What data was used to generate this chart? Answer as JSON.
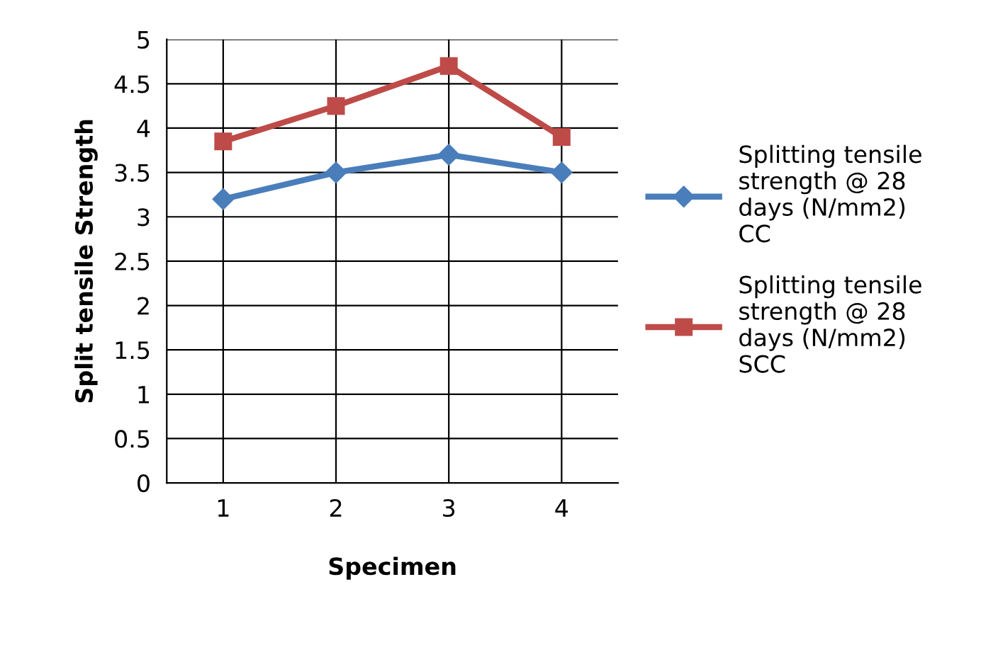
{
  "chart_data": {
    "type": "line",
    "xlabel": "Specimen",
    "ylabel": "Split tensile Strength",
    "categories": [
      "1",
      "2",
      "3",
      "4"
    ],
    "series": [
      {
        "name": "Splitting tensile\nstrength @ 28\ndays (N/mm2)\nCC",
        "color": "#4a7ebb",
        "marker": "diamond",
        "values": [
          3.2,
          3.5,
          3.7,
          3.5
        ]
      },
      {
        "name": "Splitting tensile\nstrength @ 28\ndays (N/mm2)\nSCC",
        "color": "#be4b48",
        "marker": "square",
        "values": [
          3.85,
          4.25,
          4.7,
          3.9
        ]
      }
    ],
    "ylim": [
      0,
      5
    ],
    "yticks": [
      0,
      0.5,
      1,
      1.5,
      2,
      2.5,
      3,
      3.5,
      4,
      4.5,
      5
    ],
    "grid": true,
    "legend": "right",
    "line_style": "solid"
  }
}
